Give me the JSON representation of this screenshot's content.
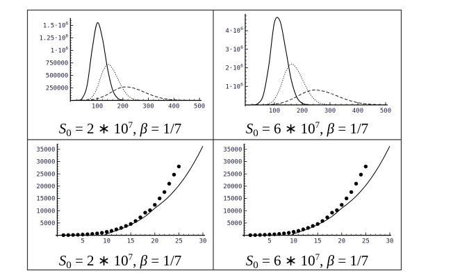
{
  "captions": [
    {
      "var": "S",
      "sub": "0",
      "eq": " = 2 ∗ 10",
      "sup": "7",
      "sep": ", ",
      "beta": "β",
      "beta_eq": " = 1/7"
    },
    {
      "var": "S",
      "sub": "0",
      "eq": " = 6 ∗ 10",
      "sup": "7",
      "sep": ", ",
      "beta": "β",
      "beta_eq": " = 1/7"
    },
    {
      "var": "S",
      "sub": "0",
      "eq": " = 2 ∗ 10",
      "sup": "7",
      "sep": ", ",
      "beta": "β",
      "beta_eq": " = 1/7"
    },
    {
      "var": "S",
      "sub": "0",
      "eq": " = 6 ∗ 10",
      "sup": "7",
      "sep": ", ",
      "beta": "β",
      "beta_eq": " = 1/7"
    }
  ],
  "chart_data": [
    {
      "type": "line",
      "title": "S0 = 2*10^7, beta = 1/7",
      "xlim": [
        0,
        500
      ],
      "ylim": [
        0,
        1600000
      ],
      "grid": false,
      "xticks": [
        {
          "v": 100,
          "label": "100"
        },
        {
          "v": 200,
          "label": "200"
        },
        {
          "v": 300,
          "label": "300"
        },
        {
          "v": 400,
          "label": "400"
        },
        {
          "v": 500,
          "label": "500"
        }
      ],
      "yticks": [
        {
          "v": 250000,
          "label": "250000"
        },
        {
          "v": 500000,
          "label": "500000"
        },
        {
          "v": 750000,
          "label": "750000"
        },
        {
          "v": 1000000,
          "label": "1·10^6"
        },
        {
          "v": 1250000,
          "label": "1.25·10^6"
        },
        {
          "v": 1500000,
          "label": "1.5·10^6"
        }
      ],
      "x": [
        0,
        20,
        40,
        60,
        80,
        100,
        120,
        140,
        160,
        180,
        200,
        220,
        240,
        260,
        280,
        300,
        320,
        340,
        360,
        380,
        400,
        420,
        440,
        460,
        480,
        500
      ],
      "series": [
        {
          "name": "solid",
          "style": "solid",
          "values": [
            0,
            2100,
            37700,
            298000,
            1026000,
            1550000,
            1241000,
            637000,
            210000,
            44000,
            6000,
            500,
            0,
            0,
            0,
            0,
            0,
            0,
            0,
            0,
            0,
            0,
            0,
            0,
            0,
            0
          ]
        },
        {
          "name": "dotted",
          "style": "dotted",
          "values": [
            0,
            70,
            1200,
            12200,
            72000,
            259000,
            558000,
            720000,
            635000,
            437000,
            234000,
            97000,
            31600,
            8000,
            1600,
            240,
            0,
            0,
            0,
            0,
            0,
            0,
            0,
            0,
            0,
            0
          ]
        },
        {
          "name": "dashed",
          "style": "dashed",
          "values": [
            184,
            690,
            2270,
            6560,
            16500,
            36500,
            70700,
            120000,
            179000,
            233000,
            266000,
            268000,
            249000,
            216000,
            175000,
            131000,
            92000,
            60000,
            36500,
            20700,
            10900,
            5300,
            2500,
            1000,
            400,
            150
          ]
        }
      ]
    },
    {
      "type": "line",
      "title": "S0 = 6*10^7, beta = 1/7",
      "xlim": [
        0,
        500
      ],
      "ylim": [
        0,
        4800000
      ],
      "grid": false,
      "xticks": [
        {
          "v": 100,
          "label": "100"
        },
        {
          "v": 200,
          "label": "200"
        },
        {
          "v": 300,
          "label": "300"
        },
        {
          "v": 400,
          "label": "400"
        },
        {
          "v": 500,
          "label": "500"
        }
      ],
      "yticks": [
        {
          "v": 1000000,
          "label": "1·10^6"
        },
        {
          "v": 2000000,
          "label": "2·10^6"
        },
        {
          "v": 3000000,
          "label": "3·10^6"
        },
        {
          "v": 4000000,
          "label": "4·10^6"
        }
      ],
      "x": [
        0,
        20,
        40,
        60,
        80,
        100,
        120,
        140,
        160,
        180,
        200,
        220,
        240,
        260,
        280,
        300,
        320,
        340,
        360,
        380,
        400,
        420,
        440,
        460,
        480,
        500
      ],
      "series": [
        {
          "name": "solid",
          "style": "solid",
          "values": [
            0,
            4100,
            67000,
            536000,
            2153000,
            4450000,
            4520000,
            3031000,
            1387000,
            430000,
            90000,
            12700,
            1200,
            0,
            0,
            0,
            0,
            0,
            0,
            0,
            0,
            0,
            0,
            0,
            0,
            0
          ]
        },
        {
          "name": "dotted",
          "style": "dotted",
          "values": [
            0,
            0,
            740,
            8500,
            62700,
            298000,
            904000,
            1762000,
            2200000,
            1965000,
            1399000,
            793000,
            359000,
            130000,
            37200,
            8500,
            1500,
            0,
            0,
            0,
            0,
            0,
            0,
            0,
            0,
            0
          ]
        },
        {
          "name": "dashed",
          "style": "dashed",
          "values": [
            190,
            700,
            2300,
            6900,
            18300,
            43200,
            91300,
            173000,
            294000,
            445000,
            604000,
            733000,
            797000,
            786000,
            727000,
            632000,
            516000,
            395000,
            285000,
            193000,
            122000,
            73100,
            41000,
            21600,
            10700,
            5000
          ]
        }
      ]
    },
    {
      "type": "scatter",
      "title": "S0 = 2*10^7, beta = 1/7",
      "xlim": [
        0,
        30
      ],
      "ylim": [
        0,
        36000
      ],
      "grid": false,
      "xticks": [
        {
          "v": 5,
          "label": "5"
        },
        {
          "v": 10,
          "label": "10"
        },
        {
          "v": 15,
          "label": "15"
        },
        {
          "v": 20,
          "label": "20"
        },
        {
          "v": 25,
          "label": "25"
        },
        {
          "v": 30,
          "label": "30"
        }
      ],
      "yticks": [
        {
          "v": 5000,
          "label": "5000"
        },
        {
          "v": 10000,
          "label": "10000"
        },
        {
          "v": 15000,
          "label": "15000"
        },
        {
          "v": 20000,
          "label": "20000"
        },
        {
          "v": 25000,
          "label": "25000"
        },
        {
          "v": 30000,
          "label": "30000"
        },
        {
          "v": 35000,
          "label": "35000"
        }
      ],
      "points": {
        "x": [
          1,
          2,
          3,
          4,
          5,
          6,
          7,
          8,
          9,
          10,
          11,
          12,
          13,
          14,
          15,
          16,
          17,
          18,
          19,
          20,
          21,
          22,
          23,
          24,
          25
        ],
        "y": [
          50,
          80,
          130,
          200,
          280,
          400,
          550,
          750,
          1000,
          1400,
          1800,
          2400,
          3000,
          3800,
          4600,
          5800,
          7300,
          9200,
          10200,
          12400,
          15000,
          17600,
          21000,
          24700,
          28000
        ]
      },
      "curve": {
        "x": [
          9.5,
          10,
          11,
          12,
          13,
          14,
          15,
          16,
          17,
          18,
          19,
          20,
          21,
          22,
          23,
          24,
          25,
          26,
          27,
          28,
          29,
          30
        ],
        "y": [
          0,
          600,
          1200,
          1900,
          2600,
          3400,
          4300,
          5300,
          6400,
          7700,
          9300,
          11000,
          12500,
          14100,
          15900,
          18000,
          20300,
          22900,
          25800,
          29000,
          32500,
          36300
        ]
      }
    },
    {
      "type": "scatter",
      "title": "S0 = 6*10^7, beta = 1/7",
      "xlim": [
        0,
        30
      ],
      "ylim": [
        0,
        36000
      ],
      "grid": false,
      "xticks": [
        {
          "v": 5,
          "label": "5"
        },
        {
          "v": 10,
          "label": "10"
        },
        {
          "v": 15,
          "label": "15"
        },
        {
          "v": 20,
          "label": "20"
        },
        {
          "v": 25,
          "label": "25"
        },
        {
          "v": 30,
          "label": "30"
        }
      ],
      "yticks": [
        {
          "v": 5000,
          "label": "5000"
        },
        {
          "v": 10000,
          "label": "10000"
        },
        {
          "v": 15000,
          "label": "15000"
        },
        {
          "v": 20000,
          "label": "20000"
        },
        {
          "v": 25000,
          "label": "25000"
        },
        {
          "v": 30000,
          "label": "30000"
        },
        {
          "v": 35000,
          "label": "35000"
        }
      ],
      "points": {
        "x": [
          1,
          2,
          3,
          4,
          5,
          6,
          7,
          8,
          9,
          10,
          11,
          12,
          13,
          14,
          15,
          16,
          17,
          18,
          19,
          20,
          21,
          22,
          23,
          24,
          25
        ],
        "y": [
          50,
          80,
          130,
          200,
          280,
          400,
          550,
          750,
          1000,
          1400,
          1800,
          2400,
          3000,
          3800,
          4600,
          5800,
          7300,
          9200,
          10200,
          12400,
          15000,
          17600,
          21000,
          24700,
          28000
        ]
      },
      "curve": {
        "x": [
          9.5,
          10,
          11,
          12,
          13,
          14,
          15,
          16,
          17,
          18,
          19,
          20,
          21,
          22,
          23,
          24,
          25,
          26,
          27,
          28,
          29,
          30
        ],
        "y": [
          0,
          600,
          1200,
          1900,
          2600,
          3400,
          4300,
          5300,
          6400,
          7700,
          9300,
          11000,
          12500,
          14100,
          15900,
          18000,
          20300,
          22900,
          25800,
          29000,
          32500,
          36300
        ]
      }
    }
  ]
}
